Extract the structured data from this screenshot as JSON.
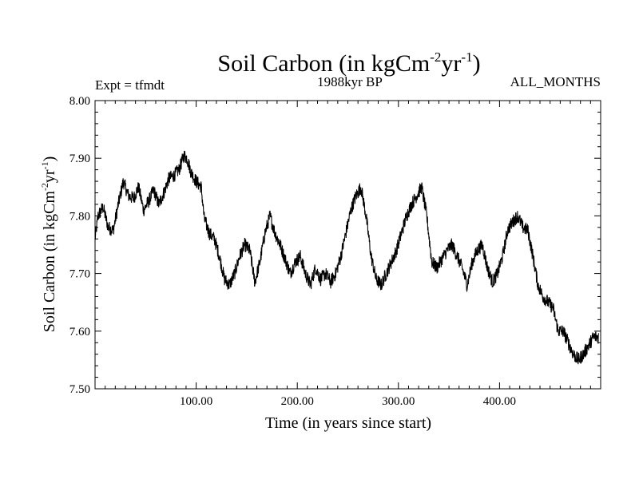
{
  "chart_data": {
    "type": "line",
    "title_main": "Soil Carbon (in kgCm",
    "title_sup1": "-2",
    "title_mid": "yr",
    "title_sup2": "-1",
    "title_end": ")",
    "subtitle": "1988kyr BP",
    "expt_label": "Expt = tfmdt",
    "months_label": "ALL_MONTHS",
    "xlabel": "Time (in years since start)",
    "ylabel_main": "Soil Carbon (in kgCm",
    "ylabel_sup1": "-2",
    "ylabel_mid": "yr",
    "ylabel_sup2": "-1",
    "ylabel_end": ")",
    "xlim": [
      0,
      500
    ],
    "ylim": [
      7.5,
      8.0
    ],
    "x_ticks": [
      100,
      200,
      300,
      400
    ],
    "x_tick_labels": [
      "100.00",
      "200.00",
      "300.00",
      "400.00"
    ],
    "y_ticks": [
      7.5,
      7.6,
      7.7,
      7.8,
      7.9,
      8.0
    ],
    "y_tick_labels": [
      "7.50",
      "7.60",
      "7.70",
      "7.80",
      "7.90",
      "8.00"
    ],
    "series": [
      {
        "name": "Soil Carbon",
        "x": [
          0,
          3,
          8,
          13,
          18,
          23,
          28,
          33,
          38,
          43,
          48,
          53,
          58,
          63,
          68,
          73,
          78,
          83,
          88,
          91,
          95,
          100,
          105,
          108,
          113,
          118,
          123,
          128,
          133,
          138,
          143,
          148,
          153,
          158,
          163,
          168,
          173,
          178,
          183,
          188,
          193,
          198,
          203,
          208,
          213,
          218,
          223,
          228,
          233,
          238,
          243,
          248,
          253,
          258,
          263,
          268,
          273,
          278,
          283,
          288,
          293,
          298,
          303,
          308,
          313,
          318,
          323,
          328,
          333,
          338,
          343,
          348,
          353,
          358,
          363,
          368,
          373,
          378,
          383,
          388,
          393,
          398,
          403,
          408,
          413,
          418,
          423,
          428,
          433,
          438,
          443,
          448,
          453,
          458,
          463,
          468,
          473,
          478,
          483,
          488,
          493,
          498
        ],
        "y": [
          7.76,
          7.8,
          7.815,
          7.78,
          7.775,
          7.82,
          7.86,
          7.835,
          7.83,
          7.85,
          7.81,
          7.825,
          7.845,
          7.82,
          7.84,
          7.865,
          7.87,
          7.88,
          7.905,
          7.9,
          7.875,
          7.86,
          7.85,
          7.795,
          7.77,
          7.76,
          7.73,
          7.69,
          7.68,
          7.7,
          7.73,
          7.75,
          7.74,
          7.685,
          7.72,
          7.77,
          7.8,
          7.77,
          7.75,
          7.725,
          7.7,
          7.72,
          7.73,
          7.7,
          7.68,
          7.71,
          7.69,
          7.7,
          7.685,
          7.7,
          7.73,
          7.77,
          7.81,
          7.835,
          7.85,
          7.8,
          7.73,
          7.69,
          7.68,
          7.7,
          7.72,
          7.74,
          7.77,
          7.8,
          7.82,
          7.835,
          7.85,
          7.8,
          7.72,
          7.71,
          7.725,
          7.74,
          7.75,
          7.73,
          7.71,
          7.68,
          7.72,
          7.74,
          7.75,
          7.71,
          7.685,
          7.7,
          7.73,
          7.775,
          7.79,
          7.8,
          7.78,
          7.775,
          7.73,
          7.68,
          7.66,
          7.65,
          7.64,
          7.6,
          7.6,
          7.58,
          7.56,
          7.55,
          7.56,
          7.575,
          7.59,
          7.59
        ]
      }
    ]
  }
}
